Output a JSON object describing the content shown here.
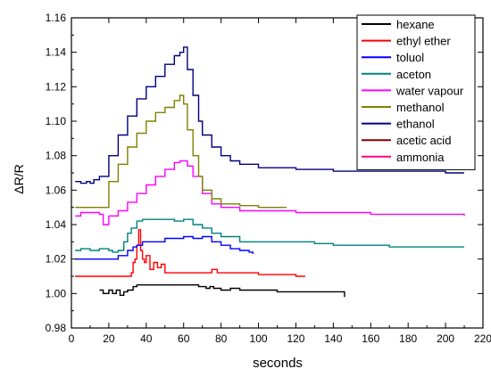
{
  "chart_data": {
    "type": "line",
    "title": "",
    "xlabel": "seconds",
    "ylabel": "ΔR/R",
    "xlim": [
      0,
      220
    ],
    "ylim": [
      0.98,
      1.16
    ],
    "xticks": [
      0,
      20,
      40,
      60,
      80,
      100,
      120,
      140,
      160,
      180,
      200,
      220
    ],
    "yticks": [
      0.98,
      1.0,
      1.02,
      1.04,
      1.06,
      1.08,
      1.1,
      1.12,
      1.14,
      1.16
    ],
    "legend_position": "top-right",
    "series": [
      {
        "name": "hexane",
        "color": "#000000",
        "x": [
          15,
          17,
          20,
          22,
          24,
          26,
          28,
          30,
          33,
          35,
          40,
          50,
          60,
          65,
          68,
          72,
          74,
          76,
          80,
          85,
          90,
          95,
          100,
          110,
          120,
          130,
          140,
          145,
          146
        ],
        "y": [
          1.002,
          1.0,
          1.002,
          1.0,
          1.002,
          0.999,
          1.001,
          1.002,
          1.004,
          1.005,
          1.005,
          1.005,
          1.005,
          1.005,
          1.004,
          1.003,
          1.004,
          1.003,
          1.002,
          1.003,
          1.002,
          1.002,
          1.002,
          1.001,
          1.001,
          1.001,
          1.001,
          1.001,
          0.998
        ]
      },
      {
        "name": "ethyl ether",
        "color": "#ff0000",
        "x": [
          2,
          3,
          8,
          15,
          20,
          25,
          30,
          32,
          33,
          34,
          35,
          36,
          37,
          38,
          39,
          40,
          42,
          44,
          46,
          48,
          50,
          55,
          60,
          70,
          75,
          78,
          80,
          90,
          100,
          110,
          115,
          120,
          125
        ],
        "y": [
          1.01,
          1.01,
          1.01,
          1.01,
          1.01,
          1.01,
          1.01,
          1.012,
          1.018,
          1.02,
          1.028,
          1.037,
          1.025,
          1.02,
          1.018,
          1.022,
          1.014,
          1.018,
          1.015,
          1.017,
          1.012,
          1.012,
          1.012,
          1.012,
          1.014,
          1.012,
          1.012,
          1.012,
          1.011,
          1.011,
          1.011,
          1.01,
          1.01
        ]
      },
      {
        "name": "toluol",
        "color": "#0000ff",
        "x": [
          2,
          5,
          10,
          15,
          20,
          25,
          30,
          33,
          35,
          38,
          40,
          45,
          50,
          55,
          60,
          65,
          70,
          75,
          80,
          85,
          90,
          95,
          97
        ],
        "y": [
          1.02,
          1.02,
          1.02,
          1.02,
          1.02,
          1.022,
          1.025,
          1.027,
          1.028,
          1.03,
          1.03,
          1.03,
          1.032,
          1.032,
          1.033,
          1.032,
          1.033,
          1.03,
          1.028,
          1.026,
          1.025,
          1.024,
          1.023
        ]
      },
      {
        "name": "aceton",
        "color": "#008080",
        "x": [
          2,
          5,
          10,
          15,
          20,
          22,
          25,
          28,
          30,
          32,
          35,
          38,
          40,
          45,
          50,
          55,
          60,
          65,
          70,
          75,
          80,
          90,
          100,
          110,
          120,
          130,
          140,
          150,
          160,
          170,
          180,
          190,
          200,
          210
        ],
        "y": [
          1.025,
          1.026,
          1.025,
          1.026,
          1.025,
          1.024,
          1.025,
          1.03,
          1.035,
          1.038,
          1.042,
          1.043,
          1.043,
          1.043,
          1.043,
          1.042,
          1.043,
          1.04,
          1.038,
          1.035,
          1.033,
          1.03,
          1.03,
          1.03,
          1.03,
          1.029,
          1.028,
          1.028,
          1.028,
          1.027,
          1.027,
          1.027,
          1.027,
          1.027
        ]
      },
      {
        "name": "water vapour",
        "color": "#ff00ff",
        "x": [
          2,
          5,
          10,
          15,
          17,
          20,
          25,
          30,
          35,
          40,
          45,
          50,
          55,
          58,
          60,
          62,
          65,
          70,
          75,
          80,
          90,
          100,
          120,
          140,
          160,
          180,
          200,
          210
        ],
        "y": [
          1.045,
          1.047,
          1.047,
          1.046,
          1.04,
          1.045,
          1.048,
          1.053,
          1.058,
          1.063,
          1.068,
          1.072,
          1.076,
          1.077,
          1.077,
          1.074,
          1.068,
          1.058,
          1.052,
          1.05,
          1.048,
          1.048,
          1.047,
          1.047,
          1.046,
          1.046,
          1.046,
          1.045
        ]
      },
      {
        "name": "methanol",
        "color": "#808000",
        "x": [
          2,
          5,
          10,
          15,
          20,
          25,
          30,
          35,
          40,
          45,
          50,
          55,
          58,
          60,
          62,
          65,
          68,
          70,
          75,
          80,
          90,
          100,
          110,
          115
        ],
        "y": [
          1.05,
          1.05,
          1.05,
          1.05,
          1.065,
          1.075,
          1.085,
          1.093,
          1.1,
          1.105,
          1.108,
          1.112,
          1.115,
          1.11,
          1.095,
          1.08,
          1.068,
          1.06,
          1.055,
          1.052,
          1.051,
          1.05,
          1.05,
          1.05
        ]
      },
      {
        "name": "ethanol",
        "color": "#000080",
        "x": [
          2,
          5,
          8,
          10,
          12,
          15,
          20,
          25,
          30,
          35,
          40,
          45,
          50,
          55,
          58,
          60,
          62,
          65,
          68,
          70,
          75,
          80,
          85,
          90,
          100,
          120,
          140,
          160,
          180,
          200,
          210
        ],
        "y": [
          1.065,
          1.064,
          1.065,
          1.064,
          1.066,
          1.068,
          1.08,
          1.092,
          1.103,
          1.113,
          1.12,
          1.126,
          1.133,
          1.138,
          1.14,
          1.143,
          1.13,
          1.115,
          1.1,
          1.092,
          1.085,
          1.08,
          1.077,
          1.075,
          1.073,
          1.072,
          1.071,
          1.071,
          1.071,
          1.07,
          1.07
        ]
      },
      {
        "name": "acetic acid",
        "color": "#800000",
        "x": [],
        "y": []
      },
      {
        "name": "ammonia",
        "color": "#ff0080",
        "x": [],
        "y": []
      }
    ]
  }
}
